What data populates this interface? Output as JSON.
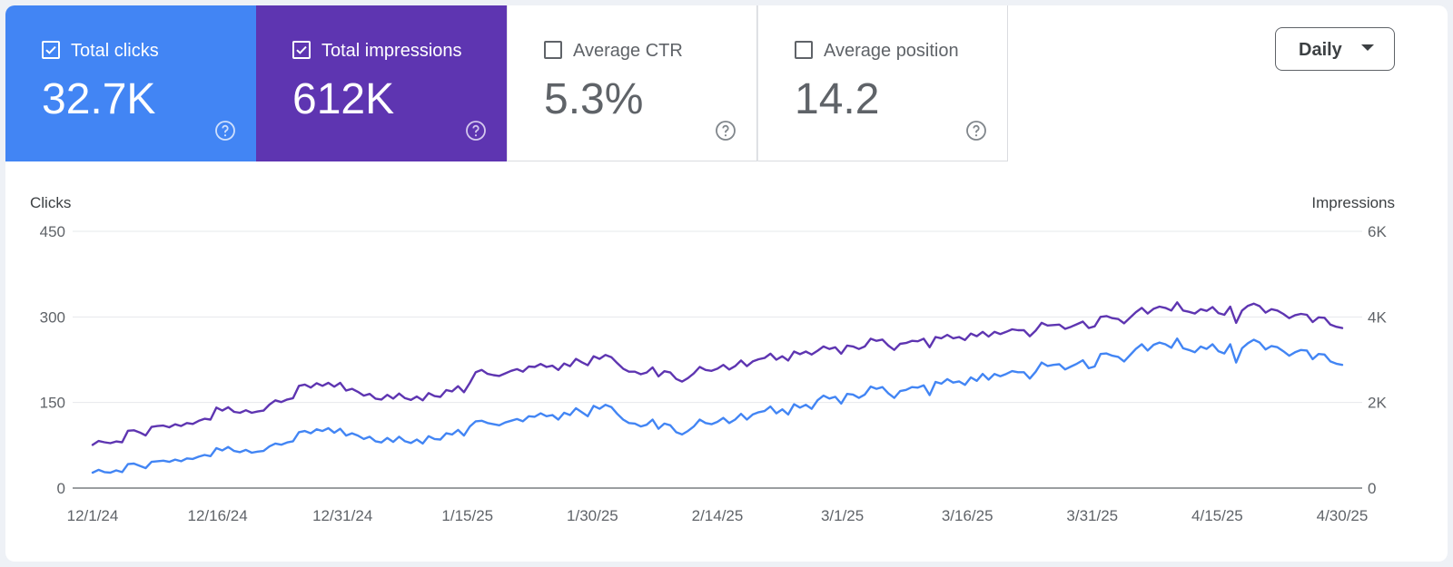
{
  "metrics": [
    {
      "label": "Total clicks",
      "value": "32.7K",
      "checked": true,
      "color": "#4285f4"
    },
    {
      "label": "Total impressions",
      "value": "612K",
      "checked": true,
      "color": "#5e35b1"
    },
    {
      "label": "Average CTR",
      "value": "5.3%",
      "checked": false,
      "color": "#ffffff"
    },
    {
      "label": "Average position",
      "value": "14.2",
      "checked": false,
      "color": "#ffffff"
    }
  ],
  "help_icon": "question-circle-icon",
  "date_granularity": {
    "selected": "Daily"
  },
  "chart_data": {
    "type": "line",
    "x_start": "12/1/24",
    "x_end": "4/30/25",
    "x_tick_labels": [
      "12/1/24",
      "12/16/24",
      "12/31/24",
      "1/15/25",
      "1/30/25",
      "2/14/25",
      "3/1/25",
      "3/16/25",
      "3/31/25",
      "4/15/25",
      "4/30/25"
    ],
    "left_axis": {
      "label": "Clicks",
      "range": [
        0,
        450
      ],
      "ticks": [
        "0",
        "150",
        "300",
        "450"
      ]
    },
    "right_axis": {
      "label": "Impressions",
      "range": [
        0,
        6000
      ],
      "ticks": [
        "0",
        "2K",
        "4K",
        "6K"
      ]
    },
    "grid": true,
    "series": [
      {
        "axis": "left",
        "color": "#4285f4",
        "values": [
          27,
          32,
          28,
          27,
          31,
          28,
          42,
          43,
          39,
          35,
          46,
          47,
          48,
          46,
          50,
          47,
          52,
          51,
          55,
          58,
          56,
          70,
          66,
          72,
          65,
          63,
          67,
          62,
          64,
          65,
          73,
          78,
          76,
          80,
          82,
          98,
          100,
          96,
          103,
          100,
          105,
          97,
          104,
          92,
          96,
          92,
          86,
          90,
          82,
          80,
          88,
          81,
          90,
          82,
          79,
          85,
          78,
          91,
          86,
          85,
          96,
          94,
          102,
          92,
          108,
          117,
          118,
          114,
          112,
          110,
          115,
          118,
          121,
          117,
          126,
          125,
          131,
          126,
          128,
          120,
          132,
          128,
          140,
          133,
          126,
          144,
          139,
          146,
          142,
          130,
          120,
          114,
          113,
          108,
          111,
          120,
          104,
          113,
          110,
          98,
          94,
          100,
          108,
          120,
          114,
          112,
          116,
          123,
          114,
          120,
          130,
          120,
          129,
          133,
          135,
          143,
          131,
          138,
          129,
          147,
          141,
          146,
          139,
          154,
          162,
          157,
          160,
          148,
          165,
          164,
          158,
          164,
          178,
          174,
          177,
          166,
          158,
          170,
          172,
          177,
          176,
          180,
          163,
          186,
          183,
          191,
          185,
          187,
          181,
          194,
          188,
          200,
          190,
          200,
          196,
          200,
          205,
          203,
          203,
          192,
          204,
          220,
          214,
          216,
          217,
          208,
          213,
          218,
          224,
          210,
          213,
          235,
          236,
          232,
          230,
          222,
          233,
          244,
          252,
          241,
          251,
          255,
          252,
          246,
          262,
          245,
          242,
          238,
          248,
          244,
          252,
          240,
          236,
          252,
          220,
          245,
          254,
          260,
          255,
          243,
          249,
          247,
          240,
          232,
          238,
          242,
          241,
          226,
          235,
          234,
          222,
          218,
          216
        ],
        "values_note": ""
      },
      {
        "axis": "right",
        "color": "#5e35b1",
        "values": [
          1010,
          1100,
          1070,
          1050,
          1090,
          1070,
          1340,
          1350,
          1300,
          1230,
          1430,
          1450,
          1460,
          1420,
          1490,
          1450,
          1520,
          1500,
          1570,
          1620,
          1600,
          1880,
          1810,
          1890,
          1780,
          1760,
          1820,
          1760,
          1790,
          1810,
          1950,
          2050,
          2010,
          2070,
          2100,
          2390,
          2420,
          2350,
          2450,
          2390,
          2460,
          2370,
          2460,
          2280,
          2320,
          2250,
          2160,
          2200,
          2090,
          2070,
          2180,
          2090,
          2210,
          2100,
          2060,
          2140,
          2050,
          2220,
          2150,
          2130,
          2290,
          2260,
          2380,
          2240,
          2460,
          2710,
          2760,
          2670,
          2640,
          2620,
          2680,
          2740,
          2780,
          2720,
          2840,
          2830,
          2900,
          2830,
          2860,
          2760,
          2910,
          2850,
          3020,
          2940,
          2870,
          3080,
          3020,
          3110,
          3060,
          2920,
          2790,
          2720,
          2720,
          2660,
          2700,
          2820,
          2610,
          2730,
          2700,
          2550,
          2490,
          2570,
          2680,
          2830,
          2760,
          2740,
          2790,
          2880,
          2770,
          2850,
          2980,
          2850,
          2960,
          3010,
          3040,
          3140,
          3000,
          3080,
          2980,
          3190,
          3130,
          3190,
          3120,
          3210,
          3310,
          3250,
          3290,
          3140,
          3330,
          3310,
          3250,
          3310,
          3490,
          3440,
          3470,
          3330,
          3230,
          3370,
          3390,
          3440,
          3430,
          3490,
          3290,
          3530,
          3500,
          3580,
          3500,
          3530,
          3460,
          3610,
          3550,
          3650,
          3540,
          3650,
          3600,
          3650,
          3710,
          3690,
          3690,
          3550,
          3680,
          3860,
          3800,
          3810,
          3820,
          3720,
          3770,
          3830,
          3890,
          3740,
          3780,
          4000,
          4020,
          3970,
          3950,
          3850,
          3980,
          4110,
          4210,
          4080,
          4190,
          4240,
          4210,
          4150,
          4340,
          4150,
          4120,
          4080,
          4180,
          4140,
          4230,
          4090,
          4050,
          4240,
          3860,
          4150,
          4260,
          4310,
          4250,
          4100,
          4180,
          4150,
          4070,
          3970,
          4040,
          4070,
          4050,
          3880,
          3990,
          3980,
          3820,
          3770,
          3740
        ],
        "values_note": ""
      }
    ]
  }
}
